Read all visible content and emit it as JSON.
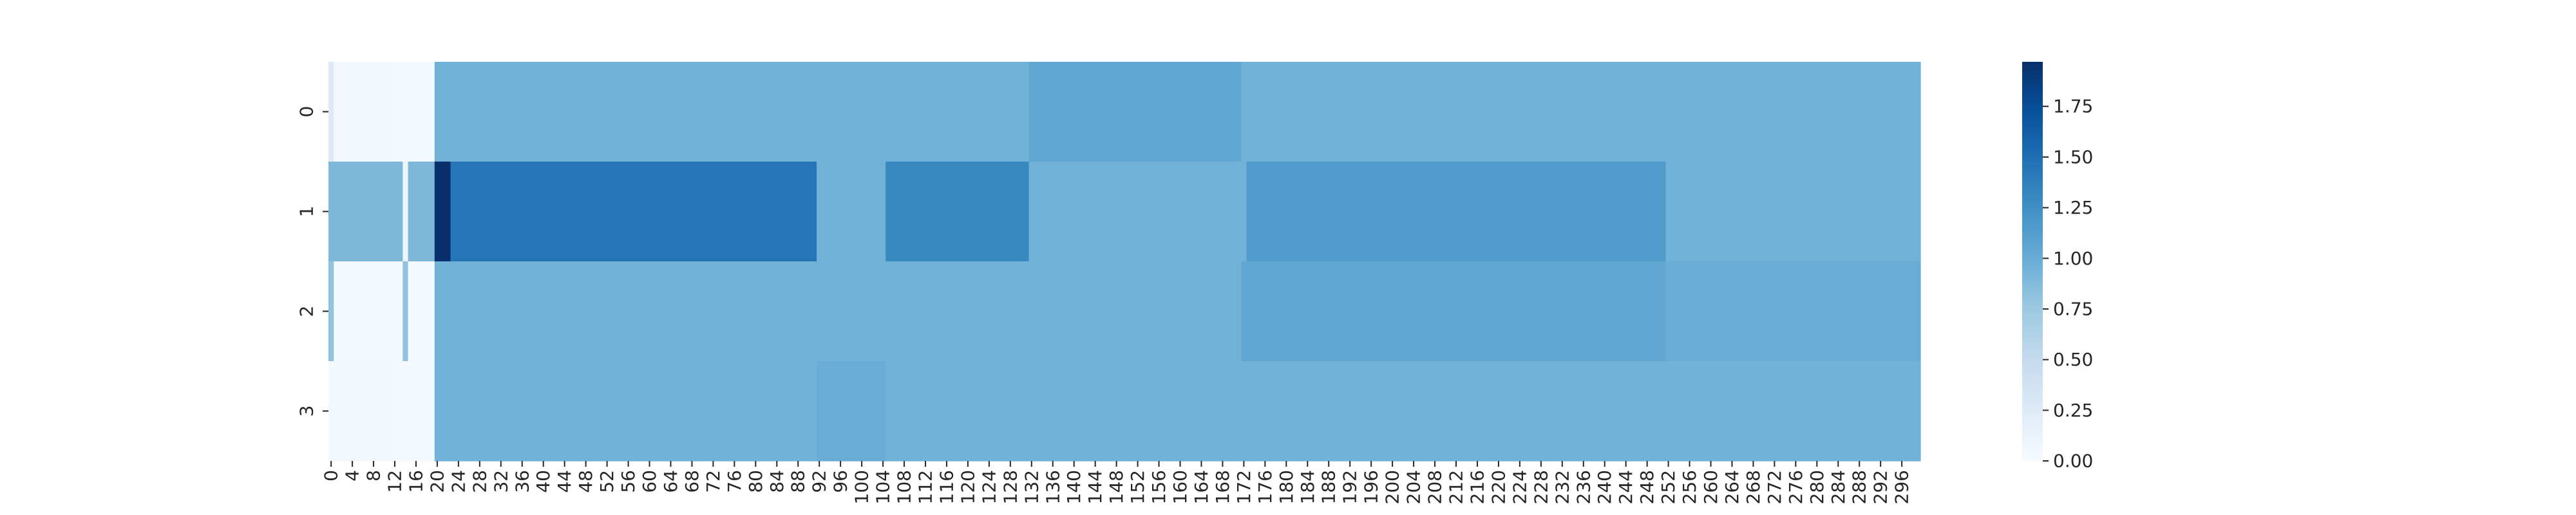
{
  "chart_data": {
    "type": "heatmap",
    "title": "",
    "xlabel": "",
    "ylabel": "",
    "colormap": "Blues",
    "colormap_start": "#f7fbff",
    "colormap_end": "#08306b",
    "color_range": [
      0,
      1.97
    ],
    "n_columns": 300,
    "rows": [
      "0",
      "1",
      "2",
      "3"
    ],
    "x_tick_labels": [
      "0",
      "4",
      "8",
      "12",
      "16",
      "20",
      "24",
      "28",
      "32",
      "36",
      "40",
      "44",
      "48",
      "52",
      "56",
      "60",
      "64",
      "68",
      "72",
      "76",
      "80",
      "84",
      "88",
      "92",
      "96",
      "100",
      "104",
      "108",
      "112",
      "116",
      "120",
      "124",
      "128",
      "132",
      "136",
      "140",
      "144",
      "148",
      "152",
      "156",
      "160",
      "164",
      "168",
      "172",
      "176",
      "180",
      "184",
      "188",
      "192",
      "196",
      "200",
      "204",
      "208",
      "212",
      "216",
      "220",
      "224",
      "228",
      "232",
      "236",
      "240",
      "244",
      "248",
      "252",
      "256",
      "260",
      "264",
      "268",
      "272",
      "276",
      "280",
      "284",
      "288",
      "292",
      "296"
    ],
    "colorbar_ticks": [
      "0.00",
      "0.25",
      "0.50",
      "0.75",
      "1.00",
      "1.25",
      "1.50",
      "1.75"
    ],
    "colorbar_tick_values": [
      0,
      0.25,
      0.5,
      0.75,
      1.0,
      1.25,
      1.5,
      1.75
    ],
    "segments": [
      [
        {
          "start": 0,
          "end": 1,
          "value": 0.25
        },
        {
          "start": 1,
          "end": 12,
          "value": 0.05
        },
        {
          "start": 12,
          "end": 20,
          "value": 0.02
        },
        {
          "start": 20,
          "end": 22,
          "value": 0.95
        },
        {
          "start": 22,
          "end": 132,
          "value": 0.95
        },
        {
          "start": 132,
          "end": 172,
          "value": 1.05
        },
        {
          "start": 172,
          "end": 300,
          "value": 0.95
        }
      ],
      [
        {
          "start": 0,
          "end": 14,
          "value": 0.9
        },
        {
          "start": 14,
          "end": 15,
          "value": 0.1
        },
        {
          "start": 15,
          "end": 20,
          "value": 0.9
        },
        {
          "start": 20,
          "end": 23,
          "value": 1.97
        },
        {
          "start": 23,
          "end": 92,
          "value": 1.45
        },
        {
          "start": 92,
          "end": 105,
          "value": 0.95
        },
        {
          "start": 105,
          "end": 132,
          "value": 1.3
        },
        {
          "start": 132,
          "end": 173,
          "value": 0.95
        },
        {
          "start": 173,
          "end": 252,
          "value": 1.15
        },
        {
          "start": 252,
          "end": 300,
          "value": 0.95
        }
      ],
      [
        {
          "start": 0,
          "end": 1,
          "value": 0.8
        },
        {
          "start": 1,
          "end": 14,
          "value": 0.03
        },
        {
          "start": 14,
          "end": 15,
          "value": 0.8
        },
        {
          "start": 15,
          "end": 20,
          "value": 0.02
        },
        {
          "start": 20,
          "end": 172,
          "value": 0.95
        },
        {
          "start": 172,
          "end": 252,
          "value": 1.05
        },
        {
          "start": 252,
          "end": 300,
          "value": 1.0
        }
      ],
      [
        {
          "start": 0,
          "end": 1,
          "value": 0.03
        },
        {
          "start": 1,
          "end": 12,
          "value": 0.06
        },
        {
          "start": 12,
          "end": 20,
          "value": 0.03
        },
        {
          "start": 20,
          "end": 92,
          "value": 0.95
        },
        {
          "start": 92,
          "end": 105,
          "value": 1.0
        },
        {
          "start": 105,
          "end": 300,
          "value": 0.95
        }
      ]
    ]
  }
}
